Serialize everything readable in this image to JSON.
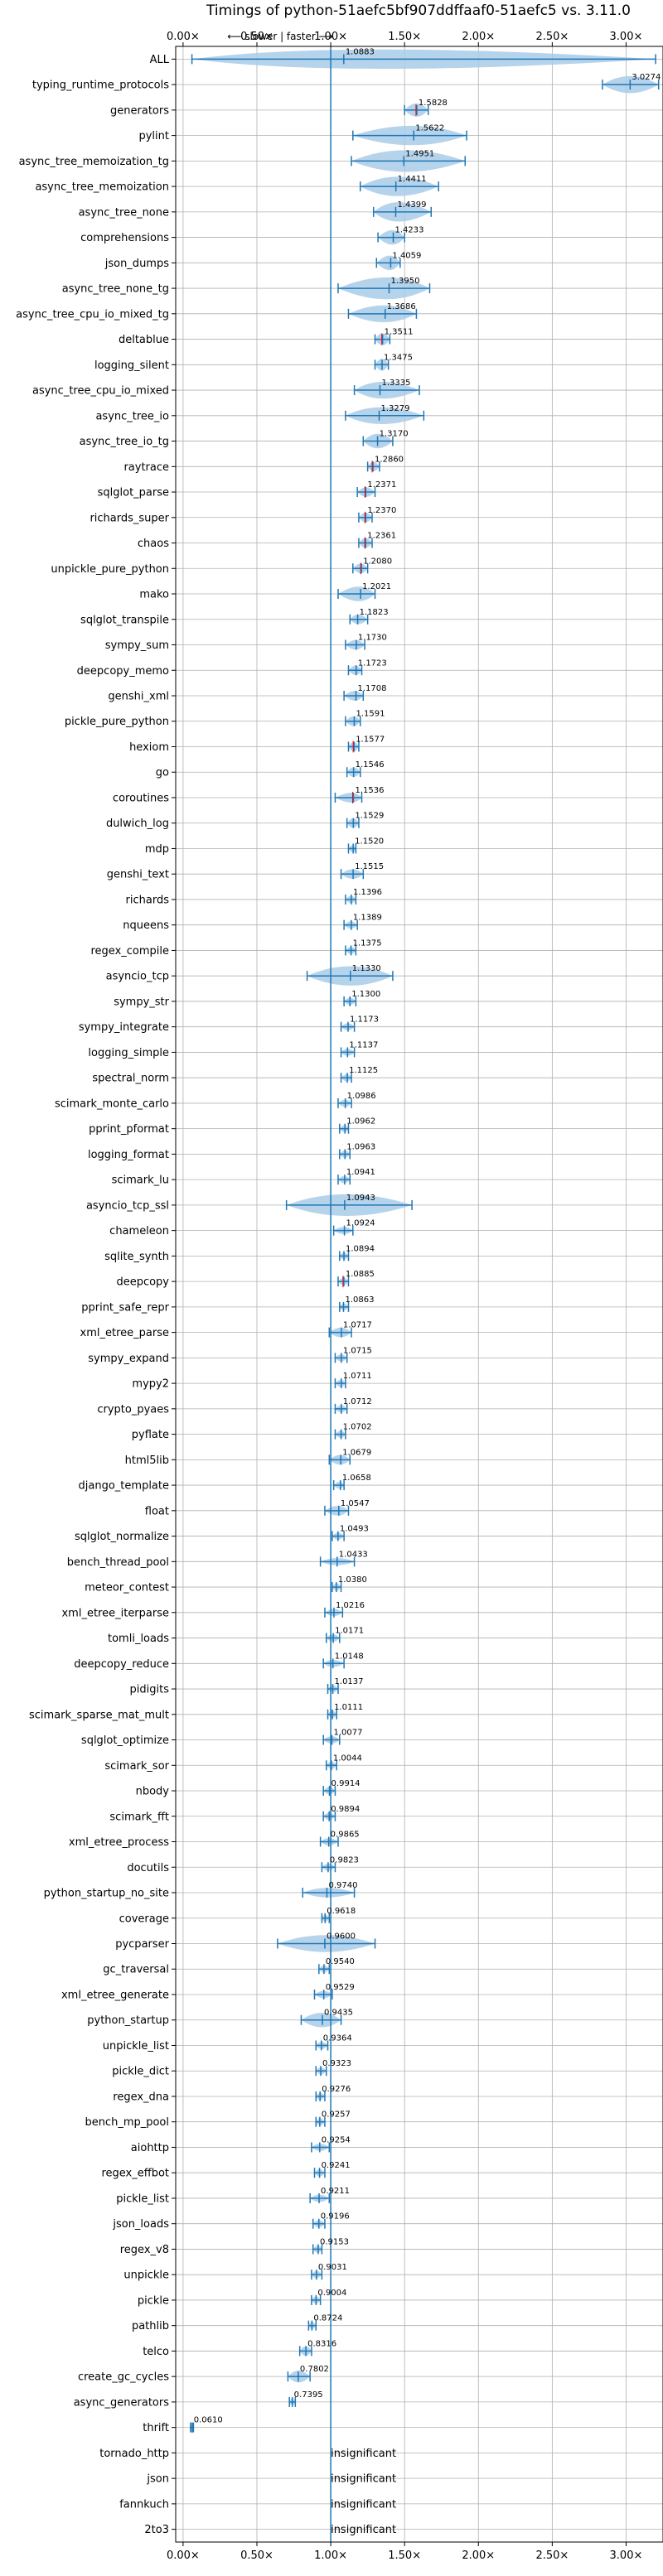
{
  "chart_data": {
    "type": "violin",
    "title": "Timings of python-51aefc5bf907ddffaaf0-51aefc5 vs. 3.11.0",
    "direction_label": "⟵ slower | faster ⟶",
    "xlim": [
      -0.05,
      3.25
    ],
    "x_ticks": [
      0.0,
      0.5,
      1.0,
      1.5,
      2.0,
      2.5,
      3.0
    ],
    "x_tick_labels": [
      "0.00×",
      "0.50×",
      "1.00×",
      "1.50×",
      "2.00×",
      "2.50×",
      "3.00×"
    ],
    "reference_line": 1.0,
    "grid": true,
    "colors": {
      "violin": "#a9cbe9",
      "whisker": "#1f77b4",
      "median_outlier": "#ff0000",
      "grid": "#b0b0b0"
    },
    "categories": [
      "ALL",
      "typing_runtime_protocols",
      "generators",
      "pylint",
      "async_tree_memoization_tg",
      "async_tree_memoization",
      "async_tree_none",
      "comprehensions",
      "json_dumps",
      "async_tree_none_tg",
      "async_tree_cpu_io_mixed_tg",
      "deltablue",
      "logging_silent",
      "async_tree_cpu_io_mixed",
      "async_tree_io",
      "async_tree_io_tg",
      "raytrace",
      "sqlglot_parse",
      "richards_super",
      "chaos",
      "unpickle_pure_python",
      "mako",
      "sqlglot_transpile",
      "sympy_sum",
      "deepcopy_memo",
      "genshi_xml",
      "pickle_pure_python",
      "hexiom",
      "go",
      "coroutines",
      "dulwich_log",
      "mdp",
      "genshi_text",
      "richards",
      "nqueens",
      "regex_compile",
      "asyncio_tcp",
      "sympy_str",
      "sympy_integrate",
      "logging_simple",
      "spectral_norm",
      "scimark_monte_carlo",
      "pprint_pformat",
      "logging_format",
      "scimark_lu",
      "asyncio_tcp_ssl",
      "chameleon",
      "sqlite_synth",
      "deepcopy",
      "pprint_safe_repr",
      "xml_etree_parse",
      "sympy_expand",
      "mypy2",
      "crypto_pyaes",
      "pyflate",
      "html5lib",
      "django_template",
      "float",
      "sqlglot_normalize",
      "bench_thread_pool",
      "meteor_contest",
      "xml_etree_iterparse",
      "tomli_loads",
      "deepcopy_reduce",
      "pidigits",
      "scimark_sparse_mat_mult",
      "sqlglot_optimize",
      "scimark_sor",
      "nbody",
      "scimark_fft",
      "xml_etree_process",
      "docutils",
      "python_startup_no_site",
      "coverage",
      "pycparser",
      "gc_traversal",
      "xml_etree_generate",
      "python_startup",
      "unpickle_list",
      "pickle_dict",
      "regex_dna",
      "bench_mp_pool",
      "aiohttp",
      "regex_effbot",
      "pickle_list",
      "json_loads",
      "regex_v8",
      "unpickle",
      "pickle",
      "pathlib",
      "telco",
      "create_gc_cycles",
      "async_generators",
      "thrift",
      "tornado_http",
      "json",
      "fannkuch",
      "2to3"
    ],
    "values": [
      1.0883,
      3.0274,
      1.5828,
      1.5622,
      1.4951,
      1.4411,
      1.4399,
      1.4233,
      1.4059,
      1.395,
      1.3686,
      1.3511,
      1.3475,
      1.3335,
      1.3279,
      1.317,
      1.286,
      1.2371,
      1.237,
      1.2361,
      1.208,
      1.2021,
      1.1823,
      1.173,
      1.1723,
      1.1708,
      1.1591,
      1.1577,
      1.1546,
      1.1536,
      1.1529,
      1.152,
      1.1515,
      1.1396,
      1.1389,
      1.1375,
      1.133,
      1.13,
      1.1173,
      1.1137,
      1.1125,
      1.0986,
      1.0962,
      1.0963,
      1.0941,
      1.0943,
      1.0924,
      1.0894,
      1.0885,
      1.0863,
      1.0717,
      1.0715,
      1.0711,
      1.0712,
      1.0702,
      1.0679,
      1.0658,
      1.0547,
      1.0493,
      1.0433,
      1.038,
      1.0216,
      1.0171,
      1.0148,
      1.0137,
      1.0111,
      1.0077,
      1.0044,
      0.9914,
      0.9894,
      0.9865,
      0.9823,
      0.974,
      0.9618,
      0.96,
      0.954,
      0.9529,
      0.9435,
      0.9364,
      0.9323,
      0.9276,
      0.9257,
      0.9254,
      0.9241,
      0.9211,
      0.9196,
      0.9153,
      0.9031,
      0.9004,
      0.8724,
      0.8316,
      0.7802,
      0.7395,
      0.061,
      null,
      null,
      null,
      null
    ],
    "value_labels": [
      "1.0883",
      "3.0274",
      "1.5828",
      "1.5622",
      "1.4951",
      "1.4411",
      "1.4399",
      "1.4233",
      "1.4059",
      "1.3950",
      "1.3686",
      "1.3511",
      "1.3475",
      "1.3335",
      "1.3279",
      "1.3170",
      "1.2860",
      "1.2371",
      "1.2370",
      "1.2361",
      "1.2080",
      "1.2021",
      "1.1823",
      "1.1730",
      "1.1723",
      "1.1708",
      "1.1591",
      "1.1577",
      "1.1546",
      "1.1536",
      "1.1529",
      "1.1520",
      "1.1515",
      "1.1396",
      "1.1389",
      "1.1375",
      "1.1330",
      "1.1300",
      "1.1173",
      "1.1137",
      "1.1125",
      "1.0986",
      "1.0962",
      "1.0963",
      "1.0941",
      "1.0943",
      "1.0924",
      "1.0894",
      "1.0885",
      "1.0863",
      "1.0717",
      "1.0715",
      "1.0711",
      "1.0712",
      "1.0702",
      "1.0679",
      "1.0658",
      "1.0547",
      "1.0493",
      "1.0433",
      "1.0380",
      "1.0216",
      "1.0171",
      "1.0148",
      "1.0137",
      "1.0111",
      "1.0077",
      "1.0044",
      "0.9914",
      "0.9894",
      "0.9865",
      "0.9823",
      "0.9740",
      "0.9618",
      "0.9600",
      "0.9540",
      "0.9529",
      "0.9435",
      "0.9364",
      "0.9323",
      "0.9276",
      "0.9257",
      "0.9254",
      "0.9241",
      "0.9211",
      "0.9196",
      "0.9153",
      "0.9031",
      "0.9004",
      "0.8724",
      "0.8316",
      "0.7802",
      "0.7395",
      "0.0610",
      "insignificant",
      "insignificant",
      "insignificant",
      "insignificant"
    ],
    "ranges": [
      [
        0.06,
        3.2
      ],
      [
        2.84,
        3.22
      ],
      [
        1.5,
        1.66
      ],
      [
        1.15,
        1.92
      ],
      [
        1.14,
        1.91
      ],
      [
        1.2,
        1.73
      ],
      [
        1.29,
        1.68
      ],
      [
        1.32,
        1.5
      ],
      [
        1.31,
        1.47
      ],
      [
        1.05,
        1.67
      ],
      [
        1.12,
        1.58
      ],
      [
        1.3,
        1.4
      ],
      [
        1.3,
        1.39
      ],
      [
        1.16,
        1.6
      ],
      [
        1.1,
        1.63
      ],
      [
        1.22,
        1.42
      ],
      [
        1.25,
        1.33
      ],
      [
        1.18,
        1.3
      ],
      [
        1.19,
        1.28
      ],
      [
        1.19,
        1.28
      ],
      [
        1.15,
        1.25
      ],
      [
        1.05,
        1.3
      ],
      [
        1.13,
        1.25
      ],
      [
        1.1,
        1.23
      ],
      [
        1.12,
        1.21
      ],
      [
        1.09,
        1.22
      ],
      [
        1.1,
        1.2
      ],
      [
        1.12,
        1.19
      ],
      [
        1.11,
        1.2
      ],
      [
        1.03,
        1.21
      ],
      [
        1.11,
        1.19
      ],
      [
        1.12,
        1.17
      ],
      [
        1.07,
        1.22
      ],
      [
        1.1,
        1.17
      ],
      [
        1.09,
        1.18
      ],
      [
        1.1,
        1.17
      ],
      [
        0.84,
        1.42
      ],
      [
        1.09,
        1.17
      ],
      [
        1.07,
        1.16
      ],
      [
        1.07,
        1.16
      ],
      [
        1.07,
        1.14
      ],
      [
        1.05,
        1.14
      ],
      [
        1.06,
        1.12
      ],
      [
        1.06,
        1.13
      ],
      [
        1.05,
        1.13
      ],
      [
        0.7,
        1.55
      ],
      [
        1.02,
        1.15
      ],
      [
        1.06,
        1.12
      ],
      [
        1.05,
        1.12
      ],
      [
        1.06,
        1.12
      ],
      [
        0.99,
        1.14
      ],
      [
        1.03,
        1.11
      ],
      [
        1.03,
        1.1
      ],
      [
        1.03,
        1.11
      ],
      [
        1.03,
        1.1
      ],
      [
        0.99,
        1.13
      ],
      [
        1.02,
        1.09
      ],
      [
        0.96,
        1.12
      ],
      [
        1.01,
        1.09
      ],
      [
        0.93,
        1.16
      ],
      [
        1.01,
        1.07
      ],
      [
        0.96,
        1.08
      ],
      [
        0.97,
        1.06
      ],
      [
        0.95,
        1.09
      ],
      [
        0.98,
        1.05
      ],
      [
        0.98,
        1.04
      ],
      [
        0.95,
        1.06
      ],
      [
        0.97,
        1.04
      ],
      [
        0.95,
        1.03
      ],
      [
        0.95,
        1.03
      ],
      [
        0.93,
        1.05
      ],
      [
        0.94,
        1.03
      ],
      [
        0.81,
        1.16
      ],
      [
        0.94,
        0.99
      ],
      [
        0.64,
        1.3
      ],
      [
        0.92,
        0.99
      ],
      [
        0.89,
        1.01
      ],
      [
        0.8,
        1.07
      ],
      [
        0.9,
        0.98
      ],
      [
        0.9,
        0.97
      ],
      [
        0.9,
        0.96
      ],
      [
        0.9,
        0.96
      ],
      [
        0.87,
        0.99
      ],
      [
        0.89,
        0.96
      ],
      [
        0.86,
        0.99
      ],
      [
        0.88,
        0.96
      ],
      [
        0.88,
        0.94
      ],
      [
        0.87,
        0.94
      ],
      [
        0.87,
        0.93
      ],
      [
        0.85,
        0.9
      ],
      [
        0.79,
        0.87
      ],
      [
        0.71,
        0.86
      ],
      [
        0.72,
        0.76
      ],
      [
        0.05,
        0.07
      ],
      null,
      null,
      null,
      null
    ],
    "violin_scale": [
      0.8,
      0.7,
      0.55,
      0.8,
      0.9,
      0.8,
      0.8,
      0.6,
      0.6,
      0.9,
      0.7,
      0.5,
      0.5,
      0.7,
      0.7,
      0.6,
      0.4,
      0.4,
      0.4,
      0.4,
      0.4,
      0.6,
      0.4,
      0.4,
      0.4,
      0.4,
      0.4,
      0.4,
      0.4,
      0.4,
      0.4,
      0.3,
      0.4,
      0.3,
      0.3,
      0.3,
      0.8,
      0.3,
      0.3,
      0.3,
      0.3,
      0.3,
      0.3,
      0.3,
      0.3,
      0.9,
      0.3,
      0.3,
      0.3,
      0.3,
      0.4,
      0.3,
      0.3,
      0.3,
      0.3,
      0.4,
      0.3,
      0.4,
      0.3,
      0.3,
      0.3,
      0.3,
      0.3,
      0.3,
      0.3,
      0.3,
      0.3,
      0.3,
      0.3,
      0.3,
      0.3,
      0.3,
      0.4,
      0.3,
      0.7,
      0.3,
      0.3,
      0.6,
      0.3,
      0.3,
      0.3,
      0.3,
      0.3,
      0.3,
      0.3,
      0.3,
      0.3,
      0.3,
      0.3,
      0.3,
      0.4,
      0.5,
      0.3,
      0.2,
      0,
      0,
      0,
      0
    ],
    "outliers": [
      false,
      false,
      true,
      false,
      false,
      false,
      false,
      false,
      false,
      false,
      false,
      true,
      false,
      false,
      false,
      false,
      true,
      true,
      true,
      true,
      true,
      false,
      false,
      false,
      false,
      false,
      false,
      true,
      false,
      true,
      false,
      false,
      false,
      false,
      false,
      false,
      false,
      false,
      false,
      false,
      false,
      false,
      false,
      false,
      false,
      false,
      false,
      false,
      true,
      false,
      false,
      false,
      false,
      false,
      false,
      false,
      false,
      false,
      false,
      false,
      false,
      false,
      false,
      false,
      false,
      false,
      false,
      false,
      false,
      false,
      false,
      false,
      false,
      false,
      false,
      false,
      false,
      false,
      false,
      false,
      false,
      false,
      false,
      false,
      false,
      false,
      false,
      false,
      false,
      false,
      false,
      false,
      false,
      false,
      false,
      false,
      false,
      false
    ]
  }
}
